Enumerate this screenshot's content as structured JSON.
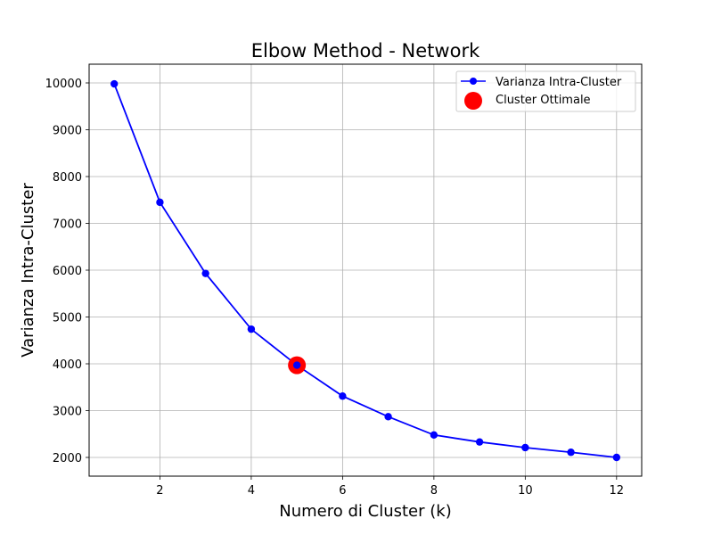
{
  "chart_data": {
    "type": "line",
    "title": "Elbow Method - Network",
    "xlabel": "Numero di Cluster (k)",
    "ylabel": "Varianza Intra-Cluster",
    "xlim": [
      0.45,
      12.55
    ],
    "ylim": [
      1600,
      10400
    ],
    "xticks": [
      2,
      4,
      6,
      8,
      10,
      12
    ],
    "yticks": [
      2000,
      3000,
      4000,
      5000,
      6000,
      7000,
      8000,
      9000,
      10000
    ],
    "grid": true,
    "legend_position": "top-right",
    "series": [
      {
        "name": "Varianza Intra-Cluster",
        "color": "#0000ff",
        "marker": "circle",
        "x": [
          1,
          2,
          3,
          4,
          5,
          6,
          7,
          8,
          9,
          10,
          11,
          12
        ],
        "y": [
          9980,
          7450,
          5930,
          4740,
          3970,
          3310,
          2870,
          2480,
          2330,
          2210,
          2110,
          2000
        ]
      }
    ],
    "highlight": {
      "name": "Cluster Ottimale",
      "color": "#ff0000",
      "x": 5,
      "y": 3970
    }
  }
}
